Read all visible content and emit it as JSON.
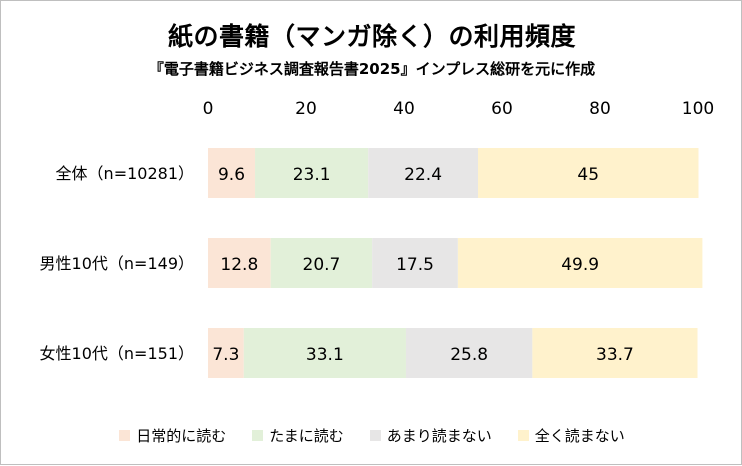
{
  "title": "紙の書籍（マンガ除く）の利用頻度",
  "subtitle": "『電子書籍ビジネス調査報告書2025』インプレス総研を元に作成",
  "colors": {
    "日常的に読む": "#fbe5d6",
    "たまに読む": "#e2f0d9",
    "あまり読まない": "#e7e6e6",
    "全く読まない": "#fff2cc"
  },
  "chart_data": {
    "type": "bar",
    "orientation": "horizontal",
    "stacked": true,
    "categories": [
      "全体（n=10281）",
      "男性10代（n=149）",
      "女性10代（n=151）"
    ],
    "series": [
      {
        "name": "日常的に読む",
        "values": [
          9.6,
          12.8,
          7.3
        ]
      },
      {
        "name": "たまに読む",
        "values": [
          23.1,
          20.7,
          33.1
        ]
      },
      {
        "name": "あまり読まない",
        "values": [
          22.4,
          17.5,
          25.8
        ]
      },
      {
        "name": "全く読まない",
        "values": [
          45,
          49.9,
          33.7
        ]
      }
    ],
    "xlim": [
      0,
      100
    ],
    "xticks": [
      0,
      20,
      40,
      60,
      80,
      100
    ],
    "xaxis_position": "top",
    "grid": false,
    "legend_position": "bottom"
  }
}
